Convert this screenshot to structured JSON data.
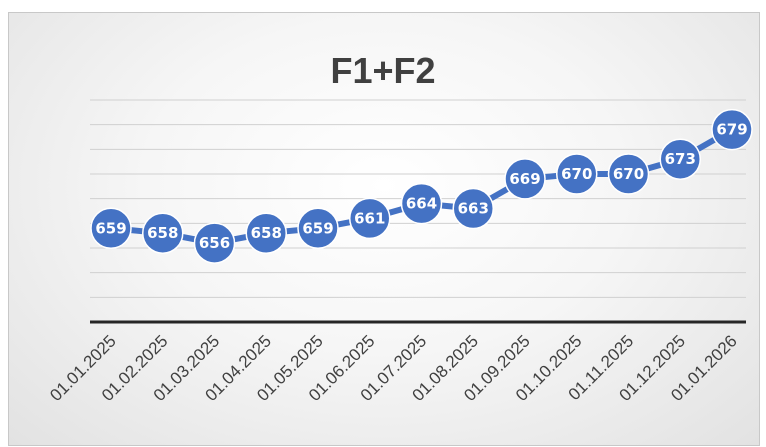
{
  "chart_data": {
    "type": "line",
    "title": "F1+F2",
    "xlabel": "",
    "ylabel": "",
    "categories": [
      "01.01.2025",
      "01.02.2025",
      "01.03.2025",
      "01.04.2025",
      "01.05.2025",
      "01.06.2025",
      "01.07.2025",
      "01.08.2025",
      "01.09.2025",
      "01.10.2025",
      "01.11.2025",
      "01.12.2025",
      "01.01.2026"
    ],
    "series": [
      {
        "values": [
          659,
          658,
          656,
          658,
          659,
          661,
          664,
          663,
          669,
          670,
          670,
          673,
          679
        ]
      }
    ],
    "ylim": [
      640,
      685
    ],
    "grid": true,
    "legend": "none",
    "colors": {
      "series": "#4472c4",
      "marker_border": "#ffffff",
      "gridline": "#d0d0d0",
      "axis": "#262626",
      "text": "#404040"
    }
  }
}
